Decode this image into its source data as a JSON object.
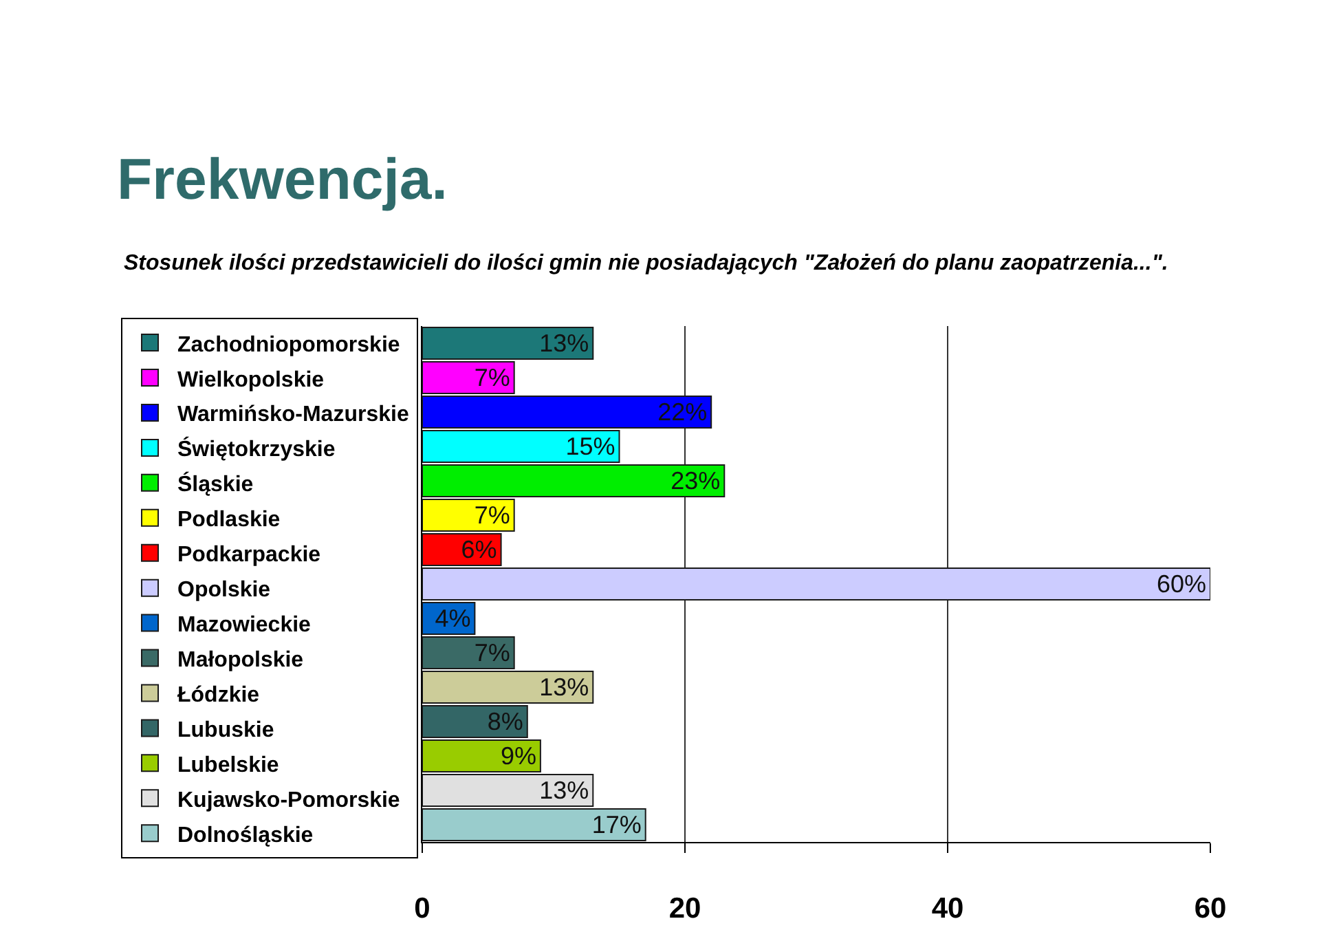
{
  "chart_data": {
    "type": "bar",
    "orientation": "horizontal",
    "title": "Frekwencja.",
    "subtitle": "Stosunek ilości przedstawicieli do ilości gmin nie posiadających \"Założeń do planu zaopatrzenia...\".",
    "categories": [
      null
    ],
    "series": [
      {
        "name": "Zachodniopomorskie",
        "color": "#1c7878",
        "values": [
          13
        ],
        "value_labels": [
          "13%"
        ]
      },
      {
        "name": "Wielkopolskie",
        "color": "#ff00ff",
        "values": [
          7
        ],
        "value_labels": [
          "7%"
        ]
      },
      {
        "name": "Warmińsko-Mazurskie",
        "color": "#0000ff",
        "values": [
          22
        ],
        "value_labels": [
          "22%"
        ]
      },
      {
        "name": "Świętokrzyskie",
        "color": "#00ffff",
        "values": [
          15
        ],
        "value_labels": [
          "15%"
        ]
      },
      {
        "name": "Śląskie",
        "color": "#00ee00",
        "values": [
          23
        ],
        "value_labels": [
          "23%"
        ]
      },
      {
        "name": "Podlaskie",
        "color": "#ffff00",
        "values": [
          7
        ],
        "value_labels": [
          "7%"
        ]
      },
      {
        "name": "Podkarpackie",
        "color": "#ff0000",
        "values": [
          6
        ],
        "value_labels": [
          "6%"
        ]
      },
      {
        "name": "Opolskie",
        "color": "#ccccff",
        "values": [
          60
        ],
        "value_labels": [
          "60%"
        ]
      },
      {
        "name": "Mazowieckie",
        "color": "#0066cc",
        "values": [
          4
        ],
        "value_labels": [
          "4%"
        ]
      },
      {
        "name": "Małopolskie",
        "color": "#3a6a66",
        "values": [
          7
        ],
        "value_labels": [
          "7%"
        ]
      },
      {
        "name": "Łódzkie",
        "color": "#cccc99",
        "values": [
          13
        ],
        "value_labels": [
          "13%"
        ]
      },
      {
        "name": "Lubuskie",
        "color": "#336666",
        "values": [
          8
        ],
        "value_labels": [
          "8%"
        ]
      },
      {
        "name": "Lubelskie",
        "color": "#99cc00",
        "values": [
          9
        ],
        "value_labels": [
          "9%"
        ]
      },
      {
        "name": "Kujawsko-Pomorskie",
        "color": "#e0e0e0",
        "values": [
          13
        ],
        "value_labels": [
          "13%"
        ]
      },
      {
        "name": "Dolnośląskie",
        "color": "#99cccc",
        "values": [
          17
        ],
        "value_labels": [
          "17%"
        ]
      }
    ],
    "xlim": [
      0,
      60
    ],
    "xticks": [
      0,
      20,
      40,
      60
    ],
    "grid": "x",
    "legend": "left",
    "tick_labels": "x"
  }
}
